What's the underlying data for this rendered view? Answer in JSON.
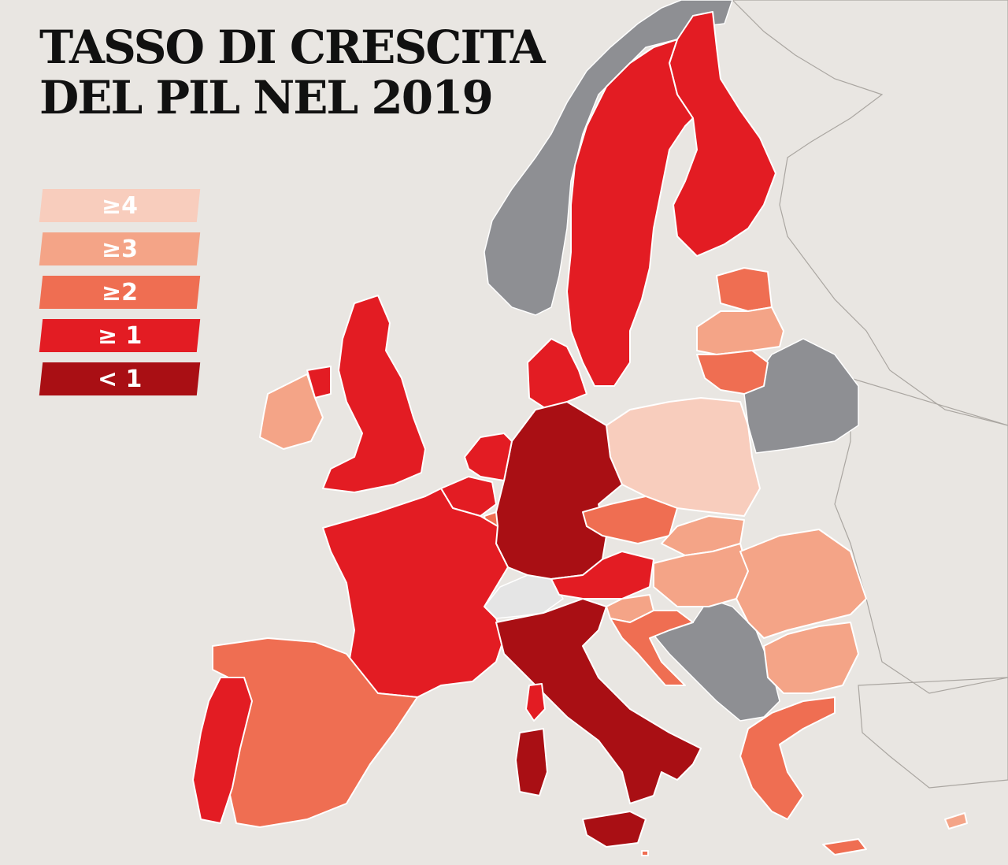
{
  "title": {
    "line1": "TASSO DI CRESCITA",
    "line2": "DEL PIL NEL 2019"
  },
  "legend": [
    {
      "label": "≥4",
      "color": "#f8cdbd"
    },
    {
      "label": "≥3",
      "color": "#f4a487"
    },
    {
      "label": "≥2",
      "color": "#ef6e52"
    },
    {
      "label": "≥ 1",
      "color": "#e31c23"
    },
    {
      "label": "< 1",
      "color": "#a90f14"
    }
  ],
  "colors": {
    "background": "#e9e6e2",
    "non_eu": "#8e8f93",
    "switzerland": "#e5e5e5"
  },
  "countries": {
    "Finland": ">=1",
    "Sweden": ">=1",
    "Denmark": ">=1",
    "Estonia": ">=2",
    "Latvia": ">=3",
    "Lithuania": ">=2",
    "Poland": ">=4",
    "Germany": "<1",
    "Netherlands": ">=1",
    "Belgium": ">=1",
    "Luxembourg": ">=2",
    "United Kingdom": ">=1",
    "Ireland": ">=3",
    "France": ">=1",
    "Spain": ">=2",
    "Portugal": ">=1",
    "Italy": "<1",
    "Austria": ">=1",
    "Czechia": ">=2",
    "Slovakia": ">=3",
    "Hungary": ">=3",
    "Slovenia": ">=3",
    "Croatia": ">=2",
    "Romania": ">=3",
    "Bulgaria": ">=3",
    "Greece": ">=2",
    "Cyprus": ">=3",
    "Malta": ">=2",
    "Norway": "non-EU",
    "Belarus": "non-EU",
    "Switzerland": "non-EU",
    "Balkans": "non-EU"
  }
}
